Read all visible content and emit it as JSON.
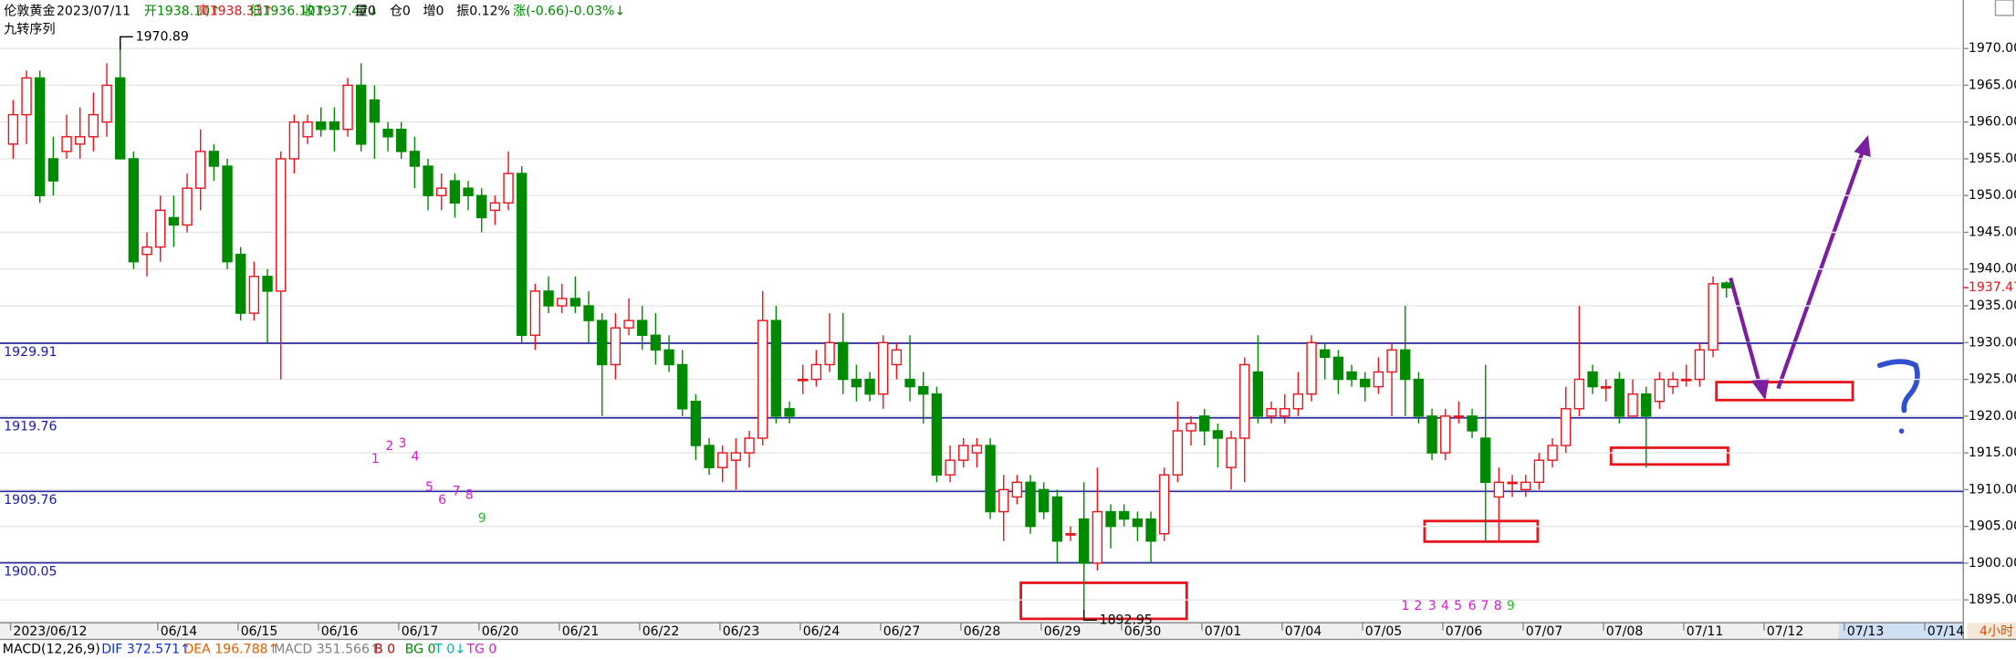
{
  "chart_data": {
    "type": "candlestick",
    "header": {
      "instrument": "伦敦黄金",
      "date": "2023/07/11",
      "fields": [
        "开1938.10↑",
        "高1938.33↑",
        "低1936.10↑",
        "收1937.47↓",
        "量0",
        "仓0",
        "增0",
        "振0.12%",
        "涨(-0.66)-0.03%↓"
      ]
    },
    "indicator_name": "九转序列",
    "period": "4小时",
    "categories": [
      "2023/06/12",
      null,
      null,
      null,
      null,
      null,
      null,
      null,
      null,
      null,
      null,
      "06/14",
      null,
      null,
      null,
      null,
      null,
      "06/15",
      null,
      null,
      null,
      null,
      null,
      "06/16",
      null,
      null,
      null,
      null,
      null,
      "06/17",
      null,
      null,
      null,
      null,
      null,
      "06/20",
      null,
      null,
      null,
      null,
      null,
      "06/21",
      null,
      null,
      null,
      null,
      null,
      "06/22",
      null,
      null,
      null,
      null,
      null,
      "06/23",
      null,
      null,
      null,
      null,
      null,
      "06/24",
      null,
      null,
      null,
      null,
      null,
      "06/27",
      null,
      null,
      null,
      null,
      null,
      "06/28",
      null,
      null,
      null,
      null,
      null,
      "06/29",
      null,
      null,
      null,
      null,
      null,
      "06/30",
      null,
      null,
      null,
      null,
      null,
      "07/01",
      null,
      null,
      null,
      null,
      null,
      "07/04",
      null,
      null,
      null,
      null,
      null,
      "07/05",
      null,
      null,
      null,
      null,
      null,
      "07/06",
      null,
      null,
      null,
      null,
      null,
      "07/07",
      null,
      null,
      null,
      null,
      null,
      "07/08",
      null,
      null,
      null,
      null,
      null,
      "07/11",
      null,
      null,
      null,
      null,
      null,
      "07/12",
      null,
      null,
      null,
      null,
      null,
      "07/13",
      null,
      null,
      null,
      null,
      null,
      "07/14",
      null,
      null
    ],
    "open": [
      1957,
      1961,
      1966,
      1955,
      1956,
      1957,
      1958,
      1960,
      1966,
      1955,
      1942,
      1943,
      1947,
      1946,
      1951,
      1956,
      1954,
      1942,
      1934,
      1939,
      1937,
      1955,
      1958,
      1960,
      1960,
      1959,
      1965,
      1963,
      1959,
      1959,
      1956,
      1954,
      1950,
      1952,
      1951,
      1950,
      1948,
      1949,
      1953,
      1931,
      1937,
      1935,
      1936,
      1935,
      1933,
      1927,
      1932,
      1933,
      1931,
      1929,
      1927,
      1922,
      1916,
      1913,
      1914,
      1915,
      1917,
      1933,
      1921,
      1925,
      1925,
      1927,
      1930,
      1925,
      1925,
      1923,
      1927,
      1925,
      1924,
      1923,
      1912,
      1914,
      1915,
      1916,
      1907,
      1909,
      1911,
      1910,
      1909,
      1904,
      1906,
      1900,
      1907,
      1907,
      1906,
      1906,
      1904,
      1912,
      1918,
      1920,
      1918,
      1913,
      1917,
      1926,
      1920,
      1920,
      1921,
      1923,
      1929,
      1928,
      1926,
      1925,
      1924,
      1926,
      1929,
      1925,
      1920,
      1915,
      1920,
      1920,
      1917,
      1909,
      1911,
      1910,
      1911,
      1914,
      1916,
      1921,
      1926,
      1924,
      1925,
      1920,
      1923,
      1922,
      1924,
      1925,
      1925,
      1929,
      1938.1,
      null,
      null,
      null,
      null,
      null,
      null,
      null,
      null,
      null,
      null,
      null,
      null,
      null,
      null,
      null,
      null,
      null
    ],
    "high": [
      1963,
      1967,
      1967,
      1958,
      1961,
      1962,
      1964,
      1968,
      1970.89,
      1956,
      1945,
      1950,
      1950,
      1953,
      1959,
      1957,
      1955,
      1943,
      1941,
      1940,
      1956,
      1961,
      1961,
      1962,
      1962,
      1966,
      1968,
      1965,
      1960,
      1960,
      1958,
      1955,
      1953,
      1953,
      1952,
      1951,
      1950,
      1956,
      1954,
      1938,
      1939,
      1938,
      1939,
      1937,
      1934,
      1934,
      1936,
      1935,
      1934,
      1931,
      1929,
      1923,
      1917,
      1916,
      1917,
      1918,
      1937,
      1935,
      1922,
      1927,
      1929,
      1934,
      1934,
      1927,
      1926,
      1931,
      1930,
      1931,
      1926,
      1924,
      1916,
      1917,
      1917,
      1917,
      1912,
      1912,
      1912,
      1911,
      1910,
      1905,
      1911,
      1913,
      1908,
      1908,
      1907,
      1907,
      1913,
      1922,
      1920,
      1921,
      1919,
      1918,
      1928,
      1931,
      1922,
      1923,
      1926,
      1931,
      1930,
      1929,
      1927,
      1926,
      1928,
      1930,
      1935,
      1926,
      1921,
      1921,
      1922,
      1921,
      1927,
      1913,
      1912,
      1912,
      1915,
      1917,
      1924,
      1935,
      1927,
      1925,
      1926,
      1925,
      1924,
      1926,
      1926,
      1927,
      1930,
      1939,
      1938.33,
      null,
      null,
      null,
      null,
      null,
      null,
      null,
      null,
      null,
      null,
      null,
      null,
      null,
      null,
      null,
      null,
      null
    ],
    "low": [
      1955,
      1957,
      1949,
      1950,
      1955,
      1955,
      1956,
      1958,
      1955,
      1940,
      1939,
      1941,
      1943,
      1945,
      1948,
      1952,
      1940,
      1933,
      1933,
      1930,
      1925,
      1953,
      1957,
      1958,
      1956,
      1958,
      1956,
      1955,
      1956,
      1955,
      1951,
      1948,
      1948,
      1947,
      1948,
      1945,
      1946,
      1948,
      1930,
      1929,
      1934,
      1934,
      1934,
      1930,
      1920,
      1925,
      1931,
      1929,
      1927,
      1926,
      1920,
      1914,
      1912,
      1911,
      1910,
      1913,
      1916,
      1919,
      1919,
      1923,
      1924,
      1926,
      1923,
      1922,
      1922,
      1921,
      1925,
      1922,
      1919,
      1911,
      1911,
      1913,
      1913,
      1906,
      1903,
      1908,
      1904,
      1906,
      1900,
      1903,
      1892.95,
      1899,
      1902,
      1905,
      1903,
      1900,
      1903,
      1911,
      1916,
      1916,
      1913,
      1910,
      1911,
      1919,
      1919,
      1919,
      1920,
      1922,
      1925,
      1923,
      1924,
      1922,
      1923,
      1920,
      1920,
      1919,
      1914,
      1914,
      1919,
      1917,
      1903,
      1903,
      1909,
      1909,
      1910,
      1913,
      1915,
      1920,
      1923,
      1922,
      1919,
      1920,
      1913,
      1921,
      1923,
      1924,
      1924,
      1928,
      1936.1,
      null,
      null,
      null,
      null,
      null,
      null,
      null,
      null,
      null,
      null,
      null,
      null,
      null,
      null,
      null,
      null,
      null
    ],
    "close": [
      1961,
      1966,
      1950,
      1952,
      1958,
      1958,
      1961,
      1965,
      1955,
      1941,
      1943,
      1948,
      1946,
      1951,
      1956,
      1954,
      1941,
      1934,
      1939,
      1937,
      1955,
      1960,
      1960,
      1959,
      1959,
      1965,
      1957,
      1960,
      1958,
      1956,
      1954,
      1950,
      1951,
      1949,
      1950,
      1947,
      1949,
      1953,
      1931,
      1937,
      1935,
      1936,
      1935,
      1933,
      1927,
      1932,
      1933,
      1931,
      1929,
      1927,
      1921,
      1916,
      1913,
      1915,
      1915,
      1917,
      1933,
      1920,
      1920,
      1925,
      1927,
      1930,
      1925,
      1924,
      1923,
      1930,
      1929,
      1924,
      1923,
      1912,
      1914,
      1916,
      1916,
      1907,
      1910,
      1911,
      1905,
      1907,
      1903,
      1904,
      1900,
      1907,
      1905,
      1906,
      1905,
      1903,
      1912,
      1918,
      1919,
      1918,
      1917,
      1917,
      1927,
      1920,
      1921,
      1921,
      1923,
      1930,
      1928,
      1925,
      1925,
      1924,
      1926,
      1929,
      1925,
      1920,
      1915,
      1920,
      1920,
      1918,
      1911,
      1911,
      1911,
      1911,
      1914,
      1916,
      1921,
      1925,
      1924,
      1924,
      1920,
      1923,
      1920,
      1925,
      1925,
      1925,
      1929,
      1938,
      1937.47,
      null,
      null,
      null,
      null,
      null,
      null,
      null,
      null,
      null,
      null,
      null,
      null,
      null,
      null,
      null,
      null,
      null
    ],
    "up_color": "#e8141c",
    "down_color": "#008a00",
    "ylim": [
      1891.9,
      1976.6
    ],
    "yticks": [
      {
        "value": 1895,
        "label": "1895.00"
      },
      {
        "value": 1900,
        "label": "1900.00"
      },
      {
        "value": 1905,
        "label": "1905.00"
      },
      {
        "value": 1910,
        "label": "1910.00"
      },
      {
        "value": 1915,
        "label": "1915.00"
      },
      {
        "value": 1920,
        "label": "1920.00"
      },
      {
        "value": 1925,
        "label": "1925.00"
      },
      {
        "value": 1930,
        "label": "1930.00"
      },
      {
        "value": 1935,
        "label": "1935.00"
      },
      {
        "value": 1940,
        "label": "1940.00"
      },
      {
        "value": 1945,
        "label": "1945.00"
      },
      {
        "value": 1950,
        "label": "1950.00"
      },
      {
        "value": 1955,
        "label": "1955.00"
      },
      {
        "value": 1960,
        "label": "1960.00"
      },
      {
        "value": 1965,
        "label": "1965.00"
      },
      {
        "value": 1970,
        "label": "1970.00"
      }
    ],
    "grid": true,
    "levels": [
      1929.91,
      1919.76,
      1909.76,
      1900.05
    ],
    "high_label": 1970.89,
    "low_label": 1892.95,
    "last_price": 1937.47,
    "nine_counts": [
      [
        "1",
        "2",
        "3",
        "4",
        "5",
        "6",
        "7",
        "8",
        "9"
      ],
      [
        "1",
        "2",
        "3",
        "4",
        "5",
        "6",
        "7",
        "8",
        "9"
      ]
    ],
    "macd": [
      "MACD(12,26,9)",
      "DIF 372.571↑",
      "DEA 196.788↑",
      "MACD 351.566↑",
      "B 0",
      "BG 0",
      "T 0↓",
      "TG 0"
    ]
  }
}
